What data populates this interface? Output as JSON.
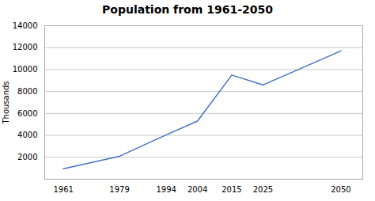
{
  "chart_data": {
    "type": "line",
    "title": "Population from 1961-2050",
    "ylabel": "Thousands",
    "x": [
      1961,
      1979,
      1994,
      2004,
      2015,
      2025,
      2050
    ],
    "values": [
      950,
      2100,
      4050,
      5300,
      9500,
      8600,
      11700
    ],
    "color": "#4472C4",
    "xlim": [
      1955,
      2057
    ],
    "xticks": [
      1961,
      1979,
      1994,
      2004,
      2015,
      2025,
      2050
    ],
    "ylim": [
      0,
      14000
    ],
    "yticks": [
      2000,
      4000,
      6000,
      8000,
      10000,
      12000,
      14000
    ],
    "grid": true
  }
}
